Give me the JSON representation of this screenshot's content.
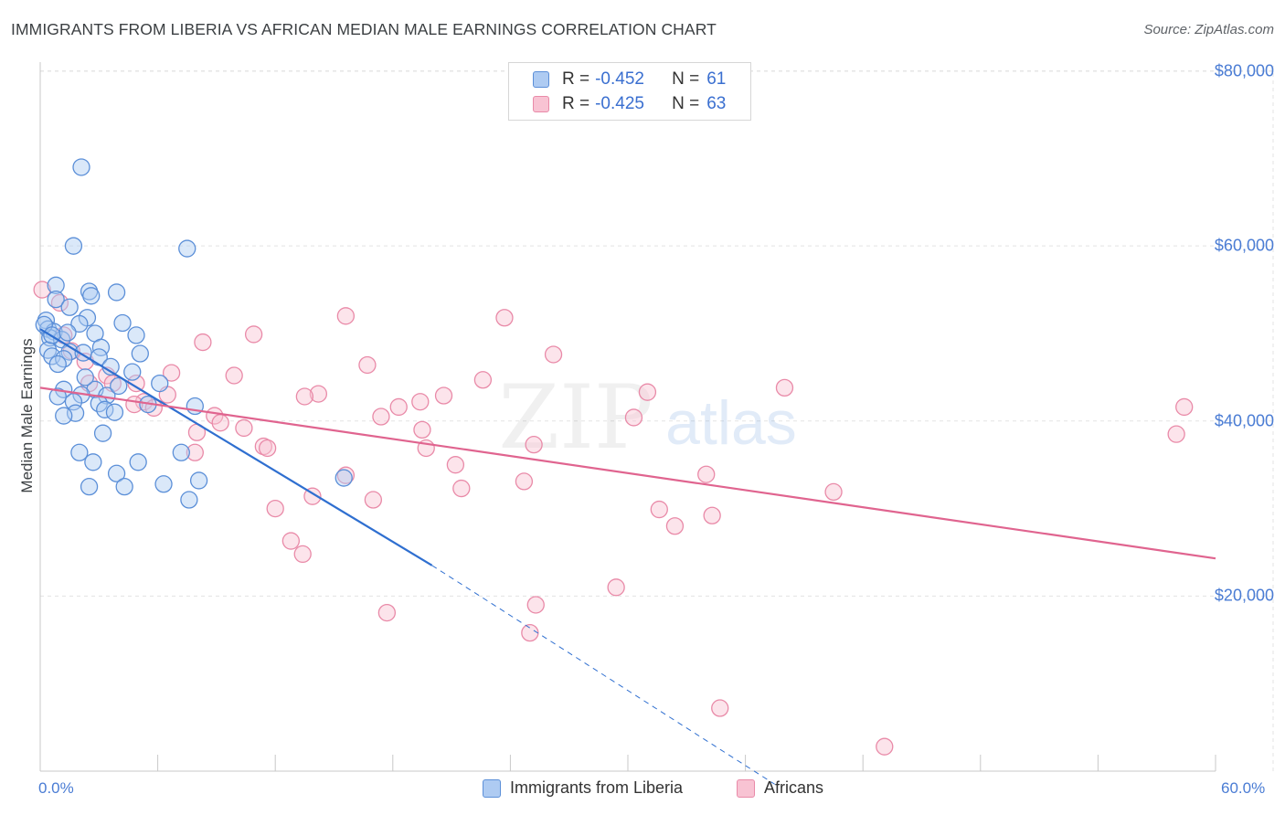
{
  "header": {
    "title": "IMMIGRANTS FROM LIBERIA VS AFRICAN MEDIAN MALE EARNINGS CORRELATION CHART",
    "source": "Source: ZipAtlas.com"
  },
  "watermark": {
    "zip": "ZIP",
    "atlas": "atlas"
  },
  "legend": {
    "series1": {
      "r_label": "R =",
      "r_value": "-0.452",
      "n_label": "N =",
      "n_value": "61"
    },
    "series2": {
      "r_label": "R =",
      "r_value": "-0.425",
      "n_label": "N =",
      "n_value": "63"
    }
  },
  "bottom_legend": {
    "series1": "Immigrants from Liberia",
    "series2": "Africans"
  },
  "colors": {
    "series1_fill": "#aecbf2",
    "series1_stroke": "#5b8fd8",
    "series1_line": "#2f6fd0",
    "series2_fill": "#f8c3d3",
    "series2_stroke": "#e98aa8",
    "series2_line": "#e0648f",
    "axis_text": "#4a7cd4",
    "grid": "#e3e3e3"
  },
  "chart_data": {
    "type": "scatter",
    "title": "IMMIGRANTS FROM LIBERIA VS AFRICAN MEDIAN MALE EARNINGS CORRELATION CHART",
    "xlabel": "",
    "ylabel": "Median Male Earnings",
    "xlim": [
      0,
      60
    ],
    "ylim": [
      0,
      81000
    ],
    "x_tick_labels": [
      "0.0%",
      "60.0%"
    ],
    "y_ticks": [
      20000,
      40000,
      60000,
      80000
    ],
    "y_tick_labels": [
      "$20,000",
      "$40,000",
      "$60,000",
      "$80,000"
    ],
    "grid": true,
    "legend_position": "top-center",
    "series": [
      {
        "name": "Immigrants from Liberia",
        "R": -0.452,
        "N": 61,
        "trend": {
          "x0": 0,
          "y0": 50500,
          "x1": 20,
          "y1": 23500,
          "dashed_to_x": 37.5,
          "dashed_to_y": -1500
        },
        "points": [
          [
            2.1,
            69000
          ],
          [
            1.7,
            60000
          ],
          [
            7.5,
            59700
          ],
          [
            0.8,
            55500
          ],
          [
            2.5,
            54800
          ],
          [
            3.9,
            54700
          ],
          [
            2.6,
            54300
          ],
          [
            0.8,
            53900
          ],
          [
            1.5,
            53000
          ],
          [
            2.4,
            51800
          ],
          [
            0.3,
            51500
          ],
          [
            4.2,
            51200
          ],
          [
            2.0,
            51100
          ],
          [
            0.4,
            50500
          ],
          [
            0.7,
            50200
          ],
          [
            2.8,
            50000
          ],
          [
            4.9,
            49800
          ],
          [
            0.5,
            49500
          ],
          [
            1.1,
            49300
          ],
          [
            3.1,
            48400
          ],
          [
            0.4,
            48100
          ],
          [
            1.5,
            47900
          ],
          [
            2.2,
            47800
          ],
          [
            5.1,
            47700
          ],
          [
            0.6,
            47400
          ],
          [
            3.0,
            47300
          ],
          [
            1.2,
            47100
          ],
          [
            4.7,
            45600
          ],
          [
            6.1,
            44300
          ],
          [
            1.2,
            43600
          ],
          [
            2.8,
            43600
          ],
          [
            2.1,
            43000
          ],
          [
            3.4,
            42900
          ],
          [
            0.9,
            42800
          ],
          [
            1.7,
            42200
          ],
          [
            3.0,
            42000
          ],
          [
            5.5,
            41900
          ],
          [
            7.9,
            41700
          ],
          [
            3.3,
            41300
          ],
          [
            3.8,
            41000
          ],
          [
            1.8,
            40900
          ],
          [
            1.2,
            40600
          ],
          [
            3.2,
            38600
          ],
          [
            2.0,
            36400
          ],
          [
            7.2,
            36400
          ],
          [
            2.7,
            35300
          ],
          [
            5.0,
            35300
          ],
          [
            3.9,
            34000
          ],
          [
            6.3,
            32800
          ],
          [
            8.1,
            33200
          ],
          [
            2.5,
            32500
          ],
          [
            4.3,
            32500
          ],
          [
            7.6,
            31000
          ],
          [
            15.5,
            33500
          ],
          [
            0.2,
            51000
          ],
          [
            0.6,
            49800
          ],
          [
            1.4,
            50100
          ],
          [
            2.3,
            45000
          ],
          [
            0.9,
            46500
          ],
          [
            4.0,
            44000
          ],
          [
            3.6,
            46200
          ]
        ]
      },
      {
        "name": "Africans",
        "R": -0.425,
        "N": 63,
        "trend": {
          "x0": 0,
          "y0": 43800,
          "x1": 60,
          "y1": 24300
        },
        "points": [
          [
            0.1,
            55000
          ],
          [
            1.0,
            53500
          ],
          [
            1.2,
            49800
          ],
          [
            1.6,
            48000
          ],
          [
            8.3,
            49000
          ],
          [
            10.9,
            49900
          ],
          [
            15.6,
            52000
          ],
          [
            23.7,
            51800
          ],
          [
            26.2,
            47600
          ],
          [
            16.7,
            46400
          ],
          [
            2.3,
            46800
          ],
          [
            6.7,
            45500
          ],
          [
            9.9,
            45200
          ],
          [
            3.4,
            45200
          ],
          [
            3.7,
            44300
          ],
          [
            4.9,
            44300
          ],
          [
            2.5,
            44300
          ],
          [
            22.6,
            44700
          ],
          [
            14.2,
            43100
          ],
          [
            13.5,
            42800
          ],
          [
            20.6,
            42900
          ],
          [
            31.0,
            43300
          ],
          [
            38.0,
            43800
          ],
          [
            19.4,
            42200
          ],
          [
            18.3,
            41600
          ],
          [
            6.5,
            43000
          ],
          [
            5.3,
            42200
          ],
          [
            4.8,
            41900
          ],
          [
            5.8,
            41500
          ],
          [
            8.9,
            40600
          ],
          [
            17.4,
            40500
          ],
          [
            30.3,
            40400
          ],
          [
            9.2,
            39800
          ],
          [
            10.4,
            39200
          ],
          [
            19.5,
            39000
          ],
          [
            8.0,
            38700
          ],
          [
            11.4,
            37100
          ],
          [
            11.6,
            36900
          ],
          [
            19.7,
            36900
          ],
          [
            25.2,
            37300
          ],
          [
            7.9,
            36400
          ],
          [
            21.2,
            35000
          ],
          [
            15.6,
            33800
          ],
          [
            34.0,
            33900
          ],
          [
            24.7,
            33100
          ],
          [
            21.5,
            32300
          ],
          [
            40.5,
            31900
          ],
          [
            13.9,
            31400
          ],
          [
            17.0,
            31000
          ],
          [
            12.0,
            30000
          ],
          [
            31.6,
            29900
          ],
          [
            34.3,
            29200
          ],
          [
            32.4,
            28000
          ],
          [
            12.8,
            26300
          ],
          [
            13.4,
            24800
          ],
          [
            29.4,
            21000
          ],
          [
            25.3,
            19000
          ],
          [
            17.7,
            18100
          ],
          [
            25.0,
            15800
          ],
          [
            34.7,
            7200
          ],
          [
            43.1,
            2800
          ],
          [
            58.4,
            41600
          ],
          [
            58.0,
            38500
          ]
        ]
      }
    ]
  }
}
